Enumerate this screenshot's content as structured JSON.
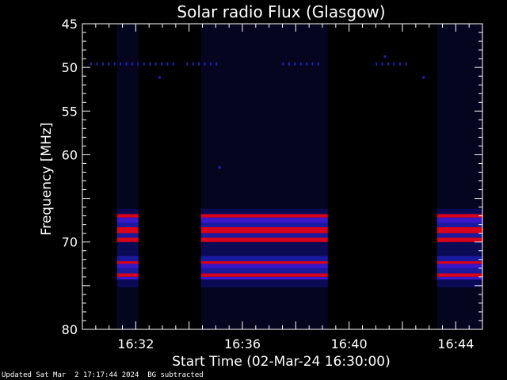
{
  "chart_data": {
    "type": "heatmap",
    "title": "Solar radio Flux (Glasgow)",
    "xlabel": "Start Time (02-Mar-24 16:30:00)",
    "ylabel": "Frequency [MHz]",
    "x_unit": "minutes after 16:30 UT",
    "xlim": [
      0,
      15
    ],
    "ylim": [
      80,
      45
    ],
    "y_ticks": [
      "45",
      "50",
      "55",
      "60",
      "70",
      "80"
    ],
    "x_ticks": [
      {
        "t": 2,
        "label": "16:32"
      },
      {
        "t": 6,
        "label": "16:36"
      },
      {
        "t": 10,
        "label": "16:40"
      },
      {
        "t": 14,
        "label": "16:44"
      }
    ],
    "active_segments": [
      {
        "start": 1.3,
        "end": 2.1
      },
      {
        "start": 4.45,
        "end": 9.2
      },
      {
        "start": 13.3,
        "end": 15.0
      }
    ],
    "emission_bands_mhz": [
      {
        "from": 66.8,
        "to": 67.2,
        "level": "high"
      },
      {
        "from": 67.2,
        "to": 67.8,
        "level": "medium"
      },
      {
        "from": 67.8,
        "to": 68.3,
        "level": "low"
      },
      {
        "from": 68.3,
        "to": 69.0,
        "level": "high"
      },
      {
        "from": 69.0,
        "to": 69.5,
        "level": "low"
      },
      {
        "from": 69.5,
        "to": 70.0,
        "level": "high"
      },
      {
        "from": 71.6,
        "to": 72.2,
        "level": "low"
      },
      {
        "from": 72.2,
        "to": 72.5,
        "level": "high"
      },
      {
        "from": 72.5,
        "to": 73.0,
        "level": "medium"
      },
      {
        "from": 73.0,
        "to": 73.6,
        "level": "low"
      },
      {
        "from": 73.6,
        "to": 74.0,
        "level": "high"
      },
      {
        "from": 74.0,
        "to": 74.3,
        "level": "medium"
      }
    ],
    "colors": {
      "background": "#000000",
      "frame": "#ffffff",
      "low": "#1a1aa0",
      "medium": "#3a18c8",
      "high": "#d8001a",
      "faint": "#05051f",
      "trace": "#2020c0"
    }
  },
  "footer": {
    "updated": "Updated Sat Mar  2 17:17:44 2024",
    "note": "BG subtracted"
  }
}
